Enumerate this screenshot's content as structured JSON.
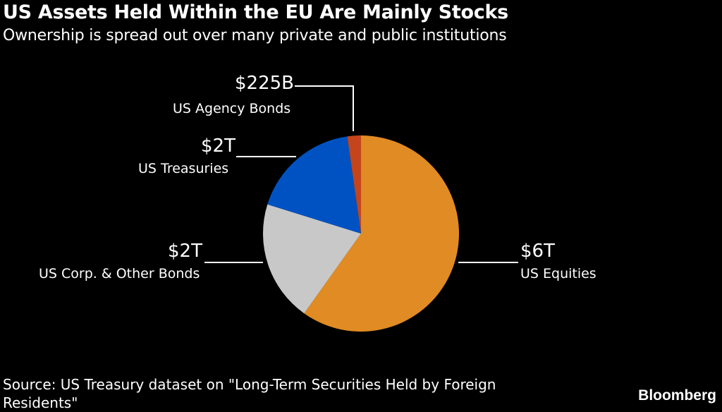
{
  "title": "US Assets Held Within the EU Are Mainly Stocks",
  "subtitle": "Ownership is spread out over many private and public institutions",
  "source": "Source: US Treasury dataset on \"Long-Term Securities Held by Foreign Residents\"",
  "logo": "Bloomberg",
  "chart_data": {
    "type": "pie",
    "start": "top, clockwise",
    "slices": [
      {
        "label": "US Equities",
        "value_label": "$6T",
        "value": 6.0,
        "color": "#E08B23"
      },
      {
        "label": "US Corp. & Other Bonds",
        "value_label": "$2T",
        "value": 2.0,
        "color": "#C8C8C8"
      },
      {
        "label": "US Treasuries",
        "value_label": "$2T",
        "value": 1.8,
        "color": "#0052C2"
      },
      {
        "label": "US Agency Bonds",
        "value_label": "$225B",
        "value": 0.225,
        "color": "#C4451C"
      }
    ]
  }
}
